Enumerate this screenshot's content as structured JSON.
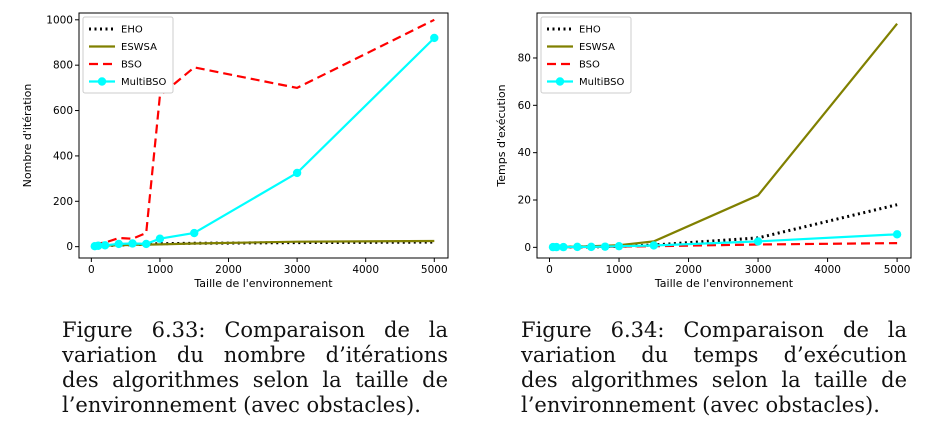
{
  "chart_data": [
    {
      "type": "line",
      "xlabel": "Taille de l'environnement",
      "ylabel": "Nombre d'itération",
      "xlim": [
        -180,
        5200
      ],
      "ylim": [
        -50,
        1030
      ],
      "xticks": [
        0,
        1000,
        2000,
        3000,
        4000,
        5000
      ],
      "yticks": [
        0,
        200,
        400,
        600,
        800,
        1000
      ],
      "legend": "top-left",
      "series": [
        {
          "name": "EHO",
          "color": "#000000",
          "style": "dotted",
          "marker": false,
          "x": [
            50,
            100,
            200,
            400,
            600,
            800,
            1000,
            1500,
            3000,
            5000
          ],
          "y": [
            3,
            4,
            5,
            7,
            9,
            11,
            13,
            15,
            18,
            20
          ]
        },
        {
          "name": "ESWSA",
          "color": "#808000",
          "style": "solid",
          "marker": false,
          "x": [
            50,
            100,
            200,
            400,
            600,
            800,
            1000,
            1500,
            3000,
            5000
          ],
          "y": [
            3,
            4,
            5,
            6,
            8,
            9,
            10,
            14,
            22,
            25
          ]
        },
        {
          "name": "BSO",
          "color": "#ff0000",
          "style": "dashed",
          "marker": false,
          "x": [
            50,
            100,
            200,
            400,
            600,
            800,
            1000,
            1500,
            3000,
            5000
          ],
          "y": [
            5,
            15,
            18,
            38,
            35,
            60,
            665,
            790,
            700,
            1000
          ]
        },
        {
          "name": "MultiBSO",
          "color": "#00ffff",
          "style": "solid",
          "marker": true,
          "x": [
            50,
            100,
            200,
            400,
            600,
            800,
            1000,
            1500,
            3000,
            5000
          ],
          "y": [
            2,
            4,
            6,
            12,
            14,
            12,
            35,
            60,
            325,
            920
          ]
        }
      ]
    },
    {
      "type": "line",
      "xlabel": "Taille de l'environnement",
      "ylabel": "Temps d'exécution",
      "xlim": [
        -180,
        5200
      ],
      "ylim": [
        -4.5,
        99
      ],
      "xticks": [
        0,
        1000,
        2000,
        3000,
        4000,
        5000
      ],
      "yticks": [
        0,
        20,
        40,
        60,
        80
      ],
      "legend": "top-left",
      "series": [
        {
          "name": "EHO",
          "color": "#000000",
          "style": "dotted",
          "marker": false,
          "x": [
            50,
            100,
            200,
            400,
            600,
            800,
            1000,
            1500,
            3000,
            5000
          ],
          "y": [
            0.1,
            0.1,
            0.1,
            0.2,
            0.2,
            0.3,
            0.4,
            1.0,
            4.0,
            18.0
          ]
        },
        {
          "name": "ESWSA",
          "color": "#808000",
          "style": "solid",
          "marker": false,
          "x": [
            50,
            100,
            200,
            400,
            600,
            800,
            1000,
            1500,
            3000,
            5000
          ],
          "y": [
            0.1,
            0.1,
            0.2,
            0.3,
            0.5,
            0.7,
            0.9,
            2.5,
            22.0,
            94.5
          ]
        },
        {
          "name": "BSO",
          "color": "#ff0000",
          "style": "dashed",
          "marker": false,
          "x": [
            50,
            100,
            200,
            400,
            600,
            800,
            1000,
            1500,
            3000,
            5000
          ],
          "y": [
            0.1,
            0.1,
            0.1,
            0.1,
            0.2,
            0.2,
            0.3,
            0.5,
            1.2,
            1.8
          ]
        },
        {
          "name": "MultiBSO",
          "color": "#00ffff",
          "style": "solid",
          "marker": true,
          "x": [
            50,
            100,
            200,
            400,
            600,
            800,
            1000,
            1500,
            3000,
            5000
          ],
          "y": [
            0.1,
            0.1,
            0.1,
            0.2,
            0.2,
            0.3,
            0.5,
            0.8,
            2.5,
            5.5
          ]
        }
      ]
    }
  ],
  "captions": [
    {
      "lines": [
        "Figure 6.33:   Comparaison de la",
        "variation du nombre d’itérations",
        "des algorithmes selon la taille de",
        "l’environnement (avec obstacles)."
      ]
    },
    {
      "lines": [
        "Figure 6.34:   Comparaison de la",
        "variation du temps d’exécution",
        "des algorithmes selon la taille de",
        "l’environnement (avec obstacles)."
      ]
    }
  ]
}
